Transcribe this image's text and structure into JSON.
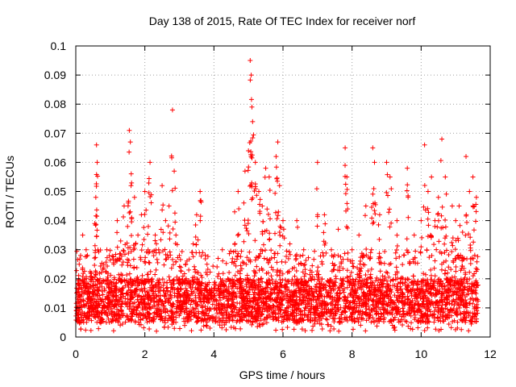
{
  "chart_data": {
    "type": "scatter",
    "title": "Day 138 of 2015, Rate Of TEC Index for receiver norf",
    "xlabel": "GPS time / hours",
    "ylabel": "ROTI / TECUs",
    "xlim": [
      0,
      12
    ],
    "ylim": [
      0,
      0.1
    ],
    "xticks": [
      0,
      2,
      4,
      6,
      8,
      10,
      12
    ],
    "xtick_labels": [
      "0",
      "2",
      "4",
      "6",
      "8",
      "10",
      "12"
    ],
    "yticks": [
      0,
      0.01,
      0.02,
      0.03,
      0.04,
      0.05,
      0.06,
      0.07,
      0.08,
      0.09,
      0.1
    ],
    "ytick_labels": [
      "0",
      "0.01",
      "0.02",
      "0.03",
      "0.04",
      "0.05",
      "0.06",
      "0.07",
      "0.08",
      "0.09",
      "0.1"
    ],
    "grid": true,
    "marker": "+",
    "color": "#ff0000",
    "series": [
      {
        "name": "norf",
        "points": [
          [
            0.05,
            0.012
          ],
          [
            0.1,
            0.025
          ],
          [
            0.15,
            0.008
          ],
          [
            0.2,
            0.035
          ],
          [
            0.25,
            0.018
          ],
          [
            0.3,
            0.03
          ],
          [
            0.4,
            0.015
          ],
          [
            0.45,
            0.022
          ],
          [
            0.55,
            0.039
          ],
          [
            0.6,
            0.066
          ],
          [
            0.62,
            0.06
          ],
          [
            0.58,
            0.048
          ],
          [
            0.7,
            0.02
          ],
          [
            0.8,
            0.012
          ],
          [
            0.9,
            0.03
          ],
          [
            1.0,
            0.018
          ],
          [
            1.1,
            0.025
          ],
          [
            1.2,
            0.04
          ],
          [
            1.3,
            0.033
          ],
          [
            1.4,
            0.045
          ],
          [
            1.5,
            0.038
          ],
          [
            1.55,
            0.071
          ],
          [
            1.58,
            0.067
          ],
          [
            1.6,
            0.052
          ],
          [
            1.7,
            0.048
          ],
          [
            1.8,
            0.035
          ],
          [
            1.9,
            0.042
          ],
          [
            2.0,
            0.05
          ],
          [
            2.1,
            0.038
          ],
          [
            2.15,
            0.06
          ],
          [
            2.3,
            0.035
          ],
          [
            2.4,
            0.03
          ],
          [
            2.5,
            0.052
          ],
          [
            2.6,
            0.04
          ],
          [
            2.7,
            0.045
          ],
          [
            2.8,
            0.078
          ],
          [
            2.85,
            0.057
          ],
          [
            2.9,
            0.035
          ],
          [
            3.0,
            0.028
          ],
          [
            3.2,
            0.02
          ],
          [
            3.4,
            0.032
          ],
          [
            3.5,
            0.042
          ],
          [
            3.6,
            0.05
          ],
          [
            3.8,
            0.025
          ],
          [
            4.0,
            0.015
          ],
          [
            4.2,
            0.018
          ],
          [
            4.4,
            0.02
          ],
          [
            4.6,
            0.043
          ],
          [
            4.7,
            0.05
          ],
          [
            4.9,
            0.057
          ],
          [
            5.0,
            0.064
          ],
          [
            5.05,
            0.095
          ],
          [
            5.08,
            0.09
          ],
          [
            5.1,
            0.079
          ],
          [
            5.12,
            0.074
          ],
          [
            5.2,
            0.06
          ],
          [
            5.3,
            0.05
          ],
          [
            5.4,
            0.045
          ],
          [
            5.5,
            0.058
          ],
          [
            5.6,
            0.055
          ],
          [
            5.8,
            0.062
          ],
          [
            5.85,
            0.067
          ],
          [
            5.9,
            0.052
          ],
          [
            6.0,
            0.04
          ],
          [
            6.2,
            0.032
          ],
          [
            6.4,
            0.04
          ],
          [
            6.6,
            0.03
          ],
          [
            7.0,
            0.06
          ],
          [
            7.2,
            0.042
          ],
          [
            7.4,
            0.03
          ],
          [
            7.6,
            0.037
          ],
          [
            7.8,
            0.065
          ],
          [
            7.85,
            0.055
          ],
          [
            8.0,
            0.03
          ],
          [
            8.2,
            0.035
          ],
          [
            8.4,
            0.045
          ],
          [
            8.6,
            0.065
          ],
          [
            8.65,
            0.06
          ],
          [
            8.8,
            0.042
          ],
          [
            9.0,
            0.06
          ],
          [
            9.1,
            0.055
          ],
          [
            9.3,
            0.04
          ],
          [
            9.6,
            0.058
          ],
          [
            9.8,
            0.035
          ],
          [
            10.0,
            0.04
          ],
          [
            10.1,
            0.066
          ],
          [
            10.2,
            0.05
          ],
          [
            10.3,
            0.055
          ],
          [
            10.4,
            0.04
          ],
          [
            10.5,
            0.048
          ],
          [
            10.6,
            0.068
          ],
          [
            10.7,
            0.055
          ],
          [
            10.9,
            0.045
          ],
          [
            11.0,
            0.04
          ],
          [
            11.1,
            0.045
          ],
          [
            11.2,
            0.036
          ],
          [
            11.3,
            0.062
          ],
          [
            11.4,
            0.05
          ],
          [
            11.5,
            0.055
          ],
          [
            11.6,
            0.048
          ]
        ],
        "bulk_band": {
          "x_range": [
            0,
            11.65
          ],
          "y_range": [
            0.002,
            0.03
          ],
          "dense_y_range": [
            0.005,
            0.02
          ]
        }
      }
    ]
  }
}
